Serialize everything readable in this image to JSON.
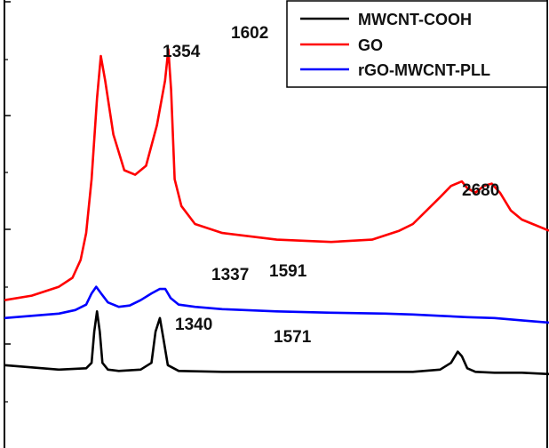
{
  "chart_data": {
    "type": "line",
    "title": "",
    "xlabel": "",
    "ylabel": "",
    "x_unit": "cm-1",
    "xlim": [
      1000,
      3000
    ],
    "ylim": [
      0,
      100
    ],
    "grid": false,
    "legend_position": "top-right",
    "series": [
      {
        "name": "MWCNT-COOH",
        "color": "#000000",
        "x": [
          1000,
          1200,
          1300,
          1320,
          1330,
          1340,
          1350,
          1360,
          1380,
          1420,
          1500,
          1540,
          1555,
          1571,
          1585,
          1600,
          1640,
          1800,
          2000,
          2300,
          2500,
          2600,
          2640,
          2665,
          2680,
          2700,
          2730,
          2800,
          2900,
          3000
        ],
        "y": [
          18.5,
          17.5,
          17.8,
          19,
          26,
          30.5,
          26,
          19,
          17.5,
          17.2,
          17.5,
          19,
          26,
          29,
          24,
          18.5,
          17.2,
          17,
          17,
          17,
          17,
          17.5,
          19,
          21.5,
          20.5,
          17.8,
          17,
          16.8,
          16.8,
          16.5
        ]
      },
      {
        "name": "GO",
        "color": "#ff0000",
        "x": [
          1000,
          1100,
          1200,
          1250,
          1280,
          1300,
          1320,
          1340,
          1354,
          1370,
          1400,
          1440,
          1480,
          1520,
          1560,
          1590,
          1602,
          1612,
          1625,
          1650,
          1700,
          1800,
          2000,
          2200,
          2350,
          2450,
          2500,
          2550,
          2600,
          2640,
          2680,
          2700,
          2730,
          2760,
          2790,
          2820,
          2860,
          2900,
          2940,
          2980,
          3000
        ],
        "y": [
          33,
          34,
          36,
          38,
          42,
          48,
          60,
          78,
          87.5,
          82,
          70,
          62,
          61,
          63,
          72,
          82,
          89,
          80,
          60,
          54,
          50,
          48,
          46.5,
          46,
          46.5,
          48.5,
          50,
          53,
          56,
          58.5,
          59.5,
          58,
          57,
          58.5,
          59,
          57,
          53,
          51,
          50,
          49,
          48.5
        ]
      },
      {
        "name": "rGO-MWCNT-PLL",
        "color": "#0000ff",
        "x": [
          1000,
          1100,
          1200,
          1260,
          1300,
          1320,
          1337,
          1355,
          1380,
          1420,
          1460,
          1500,
          1540,
          1570,
          1591,
          1610,
          1640,
          1700,
          1800,
          2000,
          2200,
          2400,
          2500,
          2600,
          2700,
          2800,
          2900,
          3000
        ],
        "y": [
          29,
          29.5,
          30,
          30.8,
          32,
          34.5,
          36,
          34.5,
          32.5,
          31.5,
          31.8,
          33,
          34.5,
          35.5,
          35.5,
          33.5,
          32,
          31.5,
          31,
          30.5,
          30.2,
          30,
          29.8,
          29.5,
          29.2,
          29,
          28.5,
          28
        ]
      }
    ],
    "annotations": [
      {
        "text": "1354",
        "series": "GO"
      },
      {
        "text": "1602",
        "series": "GO"
      },
      {
        "text": "2680",
        "series": "GO"
      },
      {
        "text": "1337",
        "series": "rGO-MWCNT-PLL"
      },
      {
        "text": "1591",
        "series": "rGO-MWCNT-PLL"
      },
      {
        "text": "1340",
        "series": "MWCNT-COOH"
      },
      {
        "text": "1571",
        "series": "MWCNT-COOH"
      }
    ]
  }
}
